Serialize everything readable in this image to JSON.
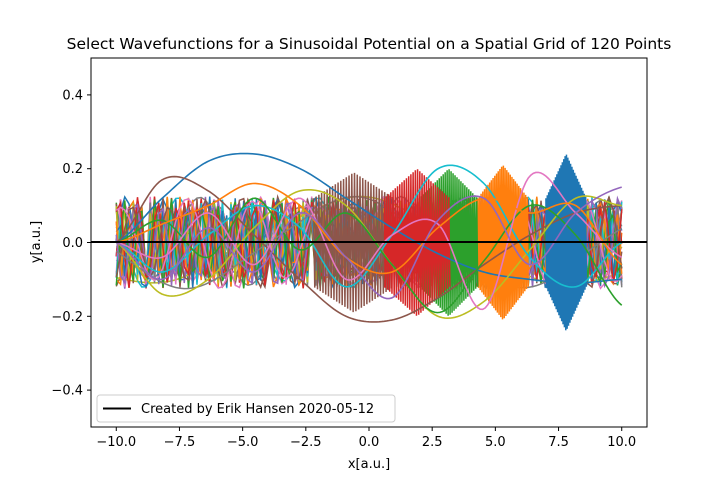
{
  "chart_data": {
    "type": "line",
    "title": "Select Wavefunctions for a Sinusoidal Potential on a Spatial Grid of 120 Points",
    "xlabel": "x[a.u.]",
    "ylabel": "y[a.u.]",
    "xlim": [
      -11,
      11
    ],
    "ylim": [
      -0.5,
      0.5
    ],
    "x_ticks": [
      -10.0,
      -7.5,
      -5.0,
      -2.5,
      0.0,
      2.5,
      5.0,
      7.5,
      10.0
    ],
    "x_tick_labels": [
      "−10.0",
      "−7.5",
      "−5.0",
      "−2.5",
      "0.0",
      "2.5",
      "5.0",
      "7.5",
      "10.0"
    ],
    "y_ticks": [
      -0.4,
      -0.2,
      0.0,
      0.2,
      0.4
    ],
    "y_tick_labels": [
      "−0.4",
      "−0.2",
      "0.0",
      "0.2",
      "0.4"
    ],
    "grid": false,
    "legend": {
      "placement": "lower-left",
      "entries": [
        "Created by Erik Hansen 2020-05-12"
      ]
    },
    "x_domain": [
      -10,
      10
    ],
    "n_grid_points": 120,
    "reference_line": {
      "y": 0.0,
      "color": "#000000",
      "label": "Created by Erik Hansen 2020-05-12"
    },
    "palette": [
      "#1f77b4",
      "#ff7f0e",
      "#2ca02c",
      "#d62728",
      "#9467bd",
      "#8c564b",
      "#e377c2",
      "#7f7f7f",
      "#bcbd22",
      "#17becf"
    ],
    "series": [
      {
        "color": "#1f77b4",
        "values": [
          0.0,
          0.12,
          0.22,
          0.24,
          0.2,
          0.12,
          0.04,
          -0.03,
          -0.08,
          -0.1,
          -0.11,
          -0.1
        ]
      },
      {
        "color": "#8c564b",
        "values": [
          0.0,
          0.17,
          0.14,
          0.02,
          -0.1,
          -0.2,
          -0.21,
          -0.15,
          -0.06,
          0.02,
          0.08,
          0.1
        ]
      },
      {
        "color": "#bcbd22",
        "values": [
          0.0,
          -0.14,
          -0.1,
          0.04,
          0.14,
          0.1,
          -0.06,
          -0.2,
          -0.16,
          -0.02,
          0.12,
          0.1
        ]
      },
      {
        "color": "#17becf",
        "values": [
          0.0,
          -0.08,
          0.02,
          0.1,
          0.04,
          -0.12,
          0.02,
          0.2,
          0.16,
          -0.04,
          -0.12,
          0.0
        ]
      },
      {
        "color": "#2ca02c",
        "values": [
          0.0,
          0.06,
          -0.04,
          0.12,
          -0.02,
          0.08,
          -0.06,
          -0.19,
          -0.05,
          0.1,
          0.02,
          -0.17
        ]
      },
      {
        "color": "#e377c2",
        "values": [
          0.0,
          -0.04,
          0.08,
          -0.06,
          0.12,
          -0.1,
          0.02,
          0.05,
          -0.18,
          0.18,
          0.08,
          -0.04
        ]
      },
      {
        "color": "#ff7f0e",
        "values": [
          0.0,
          0.05,
          0.1,
          0.16,
          0.1,
          -0.04,
          -0.08,
          0.04,
          0.12,
          0.08,
          0.1,
          -0.06
        ]
      },
      {
        "color": "#9467bd",
        "values": [
          0.0,
          -0.1,
          0.04,
          -0.08,
          0.08,
          -0.04,
          -0.15,
          0.06,
          0.12,
          -0.06,
          0.08,
          0.15
        ]
      }
    ]
  }
}
